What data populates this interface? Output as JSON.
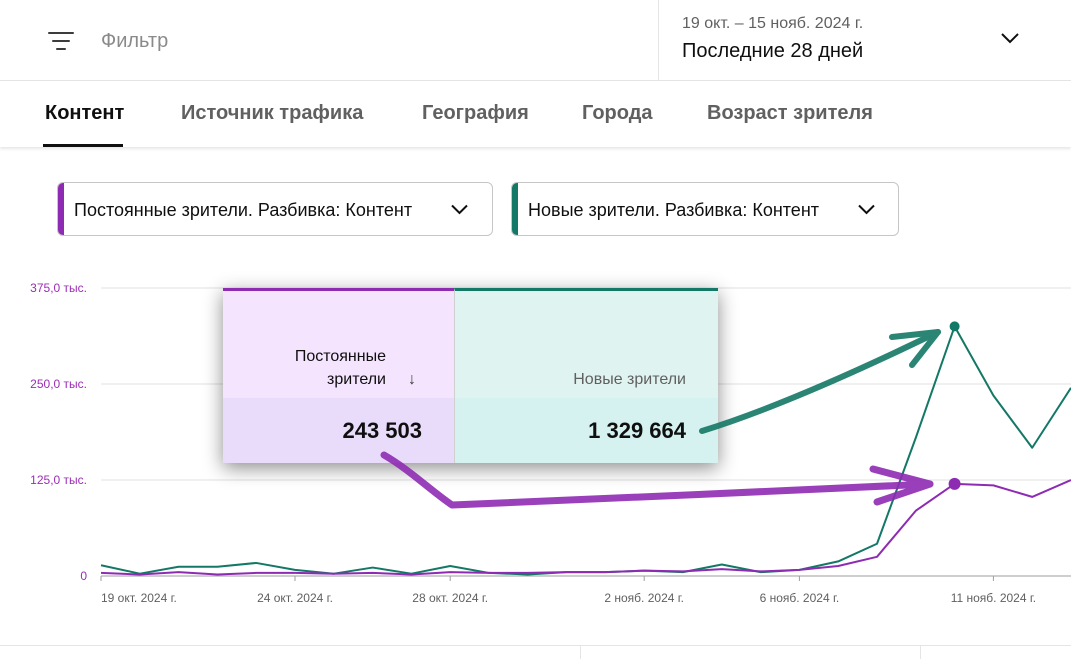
{
  "filter": {
    "placeholder": "Фильтр",
    "icon": "filter-icon"
  },
  "date_range": {
    "range_text": "19 окт. – 15 нояб. 2024 г.",
    "preset": "Последние 28 дней"
  },
  "tabs": [
    {
      "label": "Контент",
      "active": true
    },
    {
      "label": "Источник трафика",
      "active": false
    },
    {
      "label": "География",
      "active": false
    },
    {
      "label": "Города",
      "active": false
    },
    {
      "label": "Возраст зрителя",
      "active": false
    }
  ],
  "metric_selectors": [
    {
      "label": "Постоянные зрители. Разбивка: Контент",
      "color": "#8e2bb3"
    },
    {
      "label": "Новые зрители. Разбивка: Контент",
      "color": "#137865"
    }
  ],
  "summary_table": {
    "col1": {
      "header_line1": "Постоянные",
      "header_line2": "зрители",
      "sort_icon": "arrow-down-icon",
      "value": "243 503"
    },
    "col2": {
      "header": "Новые зрители",
      "value": "1 329 664"
    }
  },
  "chart_data": {
    "type": "line",
    "x": [
      "19 окт. 2024 г.",
      "20 окт. 2024 г.",
      "21 окт. 2024 г.",
      "22 окт. 2024 г.",
      "23 окт. 2024 г.",
      "24 окт. 2024 г.",
      "25 окт. 2024 г.",
      "26 окт. 2024 г.",
      "27 окт. 2024 г.",
      "28 окт. 2024 г.",
      "29 окт. 2024 г.",
      "30 окт. 2024 г.",
      "31 окт. 2024 г.",
      "1 нояб. 2024 г.",
      "2 нояб. 2024 г.",
      "3 нояб. 2024 г.",
      "4 нояб. 2024 г.",
      "5 нояб. 2024 г.",
      "6 нояб. 2024 г.",
      "7 нояб. 2024 г.",
      "8 нояб. 2024 г.",
      "9 нояб. 2024 г.",
      "10 нояб. 2024 г.",
      "11 нояб. 2024 г.",
      "12 нояб. 2024 г.",
      "13 нояб. 2024 г."
    ],
    "x_tick_labels": [
      "19 окт. 2024 г.",
      "24 окт. 2024 г.",
      "28 окт. 2024 г.",
      "2 нояб. 2024 г.",
      "6 нояб. 2024 г.",
      "11 нояб. 2024 г."
    ],
    "x_tick_indices": [
      0,
      5,
      9,
      14,
      18,
      23
    ],
    "y_tick_labels": [
      "0",
      "125,0 тыс.",
      "250,0 тыс.",
      "375,0 тыс."
    ],
    "y_tick_values": [
      0,
      125000,
      250000,
      375000
    ],
    "ylim": [
      0,
      375000
    ],
    "series": [
      {
        "values": [
          14000,
          3000,
          12000,
          12000,
          17000,
          8000,
          3000,
          11000,
          3000,
          13000,
          4000,
          2000,
          5000,
          5000,
          7000,
          5000,
          15000,
          5000,
          8000,
          19000,
          42000,
          180000,
          325000,
          235000,
          167000,
          245000
        ],
        "color": "#137865",
        "highlight_index": 22
      },
      {
        "values": [
          4000,
          2000,
          5000,
          2000,
          4000,
          4000,
          3000,
          4000,
          2000,
          5000,
          4000,
          4000,
          5000,
          5000,
          7000,
          6000,
          9000,
          6000,
          8000,
          13000,
          25000,
          85000,
          120000,
          118000,
          103000,
          125000
        ],
        "color": "#8e2bb3",
        "highlight_index": 22
      }
    ]
  }
}
